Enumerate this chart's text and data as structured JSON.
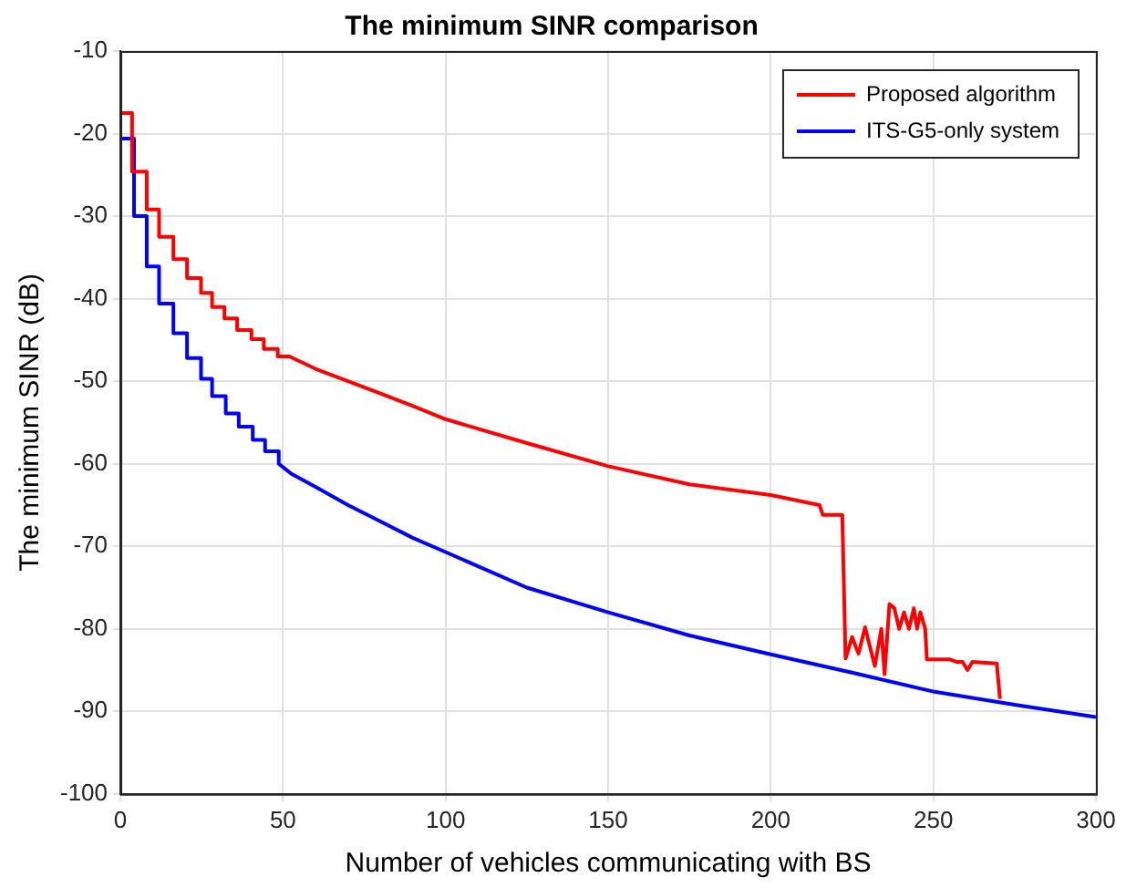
{
  "chart_data": {
    "type": "line",
    "title": "The minimum SINR comparison",
    "xlabel": "Number of vehicles communicating with BS",
    "ylabel": "The minimum SINR (dB)",
    "xlim": [
      0,
      300
    ],
    "xticks": [
      0,
      50,
      100,
      150,
      200,
      250,
      300
    ],
    "ylim": [
      -100,
      -10
    ],
    "yticks": [
      -100,
      -90,
      -80,
      -70,
      -60,
      -50,
      -40,
      -30,
      -20,
      -10
    ],
    "grid": true,
    "legend": "top right",
    "marker": "none",
    "line_style": "solid",
    "series": [
      {
        "name": "Proposed algorithm",
        "color": "#ff0000",
        "x": [
          0,
          3.6,
          3.6,
          8.1,
          8.1,
          11.9,
          11.9,
          16.3,
          16.3,
          20.5,
          20.5,
          24.8,
          24.8,
          28.2,
          28.2,
          32,
          32,
          35.9,
          35.9,
          40.3,
          40.3,
          44.1,
          44.1,
          48.4,
          48.4,
          52,
          60,
          70,
          80,
          90,
          100,
          125,
          150,
          175,
          200,
          215,
          216,
          222,
          223,
          225,
          227,
          229,
          232,
          234,
          235,
          236.5,
          238,
          239.5,
          241,
          242.5,
          244,
          245,
          246,
          247.5,
          248,
          255,
          257,
          259,
          260.5,
          262,
          269.5,
          270.5
        ],
        "values": [
          -17.5,
          -17.5,
          -24.6,
          -24.6,
          -29.2,
          -29.2,
          -32.5,
          -32.5,
          -35.2,
          -35.2,
          -37.5,
          -37.5,
          -39.3,
          -39.3,
          -41,
          -41,
          -42.4,
          -42.4,
          -43.8,
          -43.8,
          -44.9,
          -44.9,
          -46.1,
          -46.1,
          -47,
          -47,
          -48.5,
          -50,
          -51.5,
          -53,
          -54.6,
          -57.5,
          -60.3,
          -62.5,
          -63.8,
          -65,
          -66.2,
          -66.2,
          -83.6,
          -81,
          -83,
          -79.8,
          -84.5,
          -80,
          -85.5,
          -77,
          -77.5,
          -80,
          -78,
          -80,
          -77.5,
          -80,
          -78,
          -80,
          -83.7,
          -83.7,
          -84,
          -84,
          -85,
          -84,
          -84.2,
          -88.5
        ]
      },
      {
        "name": "ITS-G5-only system",
        "color": "#0000ff",
        "x": [
          0,
          4.2,
          4.2,
          8.1,
          8.1,
          11.9,
          11.9,
          16.3,
          16.3,
          20.5,
          20.5,
          24.8,
          24.8,
          28.2,
          28.2,
          32.4,
          32.4,
          36.4,
          36.4,
          40.7,
          40.7,
          44.5,
          44.5,
          48.7,
          48.7,
          52.5,
          60,
          70,
          80,
          90,
          100,
          125,
          150,
          175,
          200,
          225,
          250,
          275,
          300
        ],
        "values": [
          -20.6,
          -20.6,
          -30,
          -30,
          -36.1,
          -36.1,
          -40.6,
          -40.6,
          -44.2,
          -44.2,
          -47.2,
          -47.2,
          -49.7,
          -49.7,
          -51.8,
          -51.8,
          -53.9,
          -53.9,
          -55.5,
          -55.5,
          -57.1,
          -57.1,
          -58.5,
          -58.5,
          -60,
          -61.2,
          -62.8,
          -65,
          -67,
          -69,
          -70.7,
          -75,
          -78,
          -80.8,
          -83.1,
          -85.3,
          -87.6,
          -89.2,
          -90.7
        ]
      }
    ]
  }
}
